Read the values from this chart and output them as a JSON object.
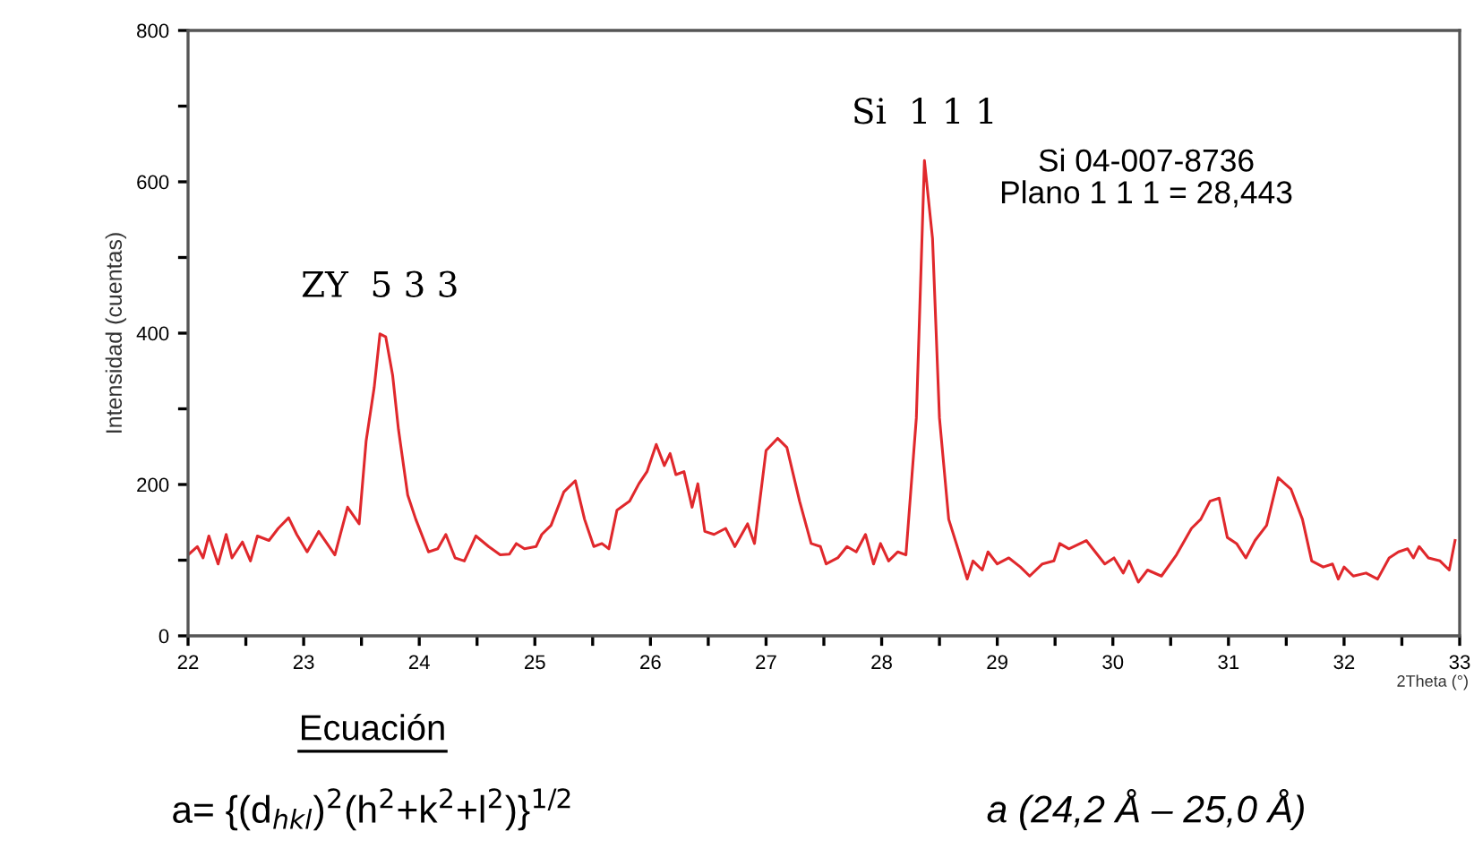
{
  "chart_data": {
    "type": "line",
    "xlabel": "2Theta (°)",
    "ylabel": "Intensidad (cuentas)",
    "xlim": [
      22,
      33
    ],
    "ylim": [
      0,
      800
    ],
    "xticks": [
      22,
      {
        "value": 22.5,
        "label": null
      },
      23,
      {
        "value": 23.5,
        "label": null
      },
      24,
      {
        "value": 24.5,
        "label": null
      },
      25,
      {
        "value": 25.5,
        "label": null
      },
      26,
      {
        "value": 26.5,
        "label": null
      },
      27,
      {
        "value": 27.5,
        "label": null
      },
      28,
      {
        "value": 28.5,
        "label": null
      },
      29,
      {
        "value": 29.5,
        "label": null
      },
      30,
      {
        "value": 30.5,
        "label": null
      },
      31,
      {
        "value": 31.5,
        "label": null
      },
      32,
      {
        "value": 32.5,
        "label": null
      },
      33
    ],
    "yticks": [
      0,
      {
        "value": 100,
        "label": null
      },
      200,
      {
        "value": 300,
        "label": null
      },
      400,
      {
        "value": 500,
        "label": null
      },
      600,
      {
        "value": 700,
        "label": null
      },
      800
    ],
    "grid": false,
    "legend": false,
    "marker": "none",
    "line_style": "solid",
    "annotations": [
      {
        "text": "ZY  5 3 3",
        "x": 23.66,
        "y": 399
      },
      {
        "text": "Si  1 1 1",
        "x": 28.37,
        "y": 628
      },
      "Si 04-007-8736\nPlano 1 1 1 = 28,443",
      "Ecuación",
      "a= {(d$_{hkl}$)$^{2}$(h$^{2}$+k$^{2}$+l$^{2}$)}$^{1/2}$",
      "a (24,2 Å – 25,0 Å)"
    ],
    "series": [
      {
        "color": "#e0282c",
        "x": [
          22.0,
          22.08,
          22.13,
          22.18,
          22.26,
          22.33,
          22.38,
          22.47,
          22.54,
          22.6,
          22.7,
          22.78,
          22.87,
          22.94,
          23.03,
          23.13,
          23.27,
          23.38,
          23.48,
          23.54,
          23.61,
          23.66,
          23.71,
          23.77,
          23.82,
          23.9,
          23.97,
          24.08,
          24.16,
          24.23,
          24.31,
          24.39,
          24.49,
          24.6,
          24.7,
          24.78,
          24.84,
          24.91,
          25.01,
          25.06,
          25.14,
          25.25,
          25.35,
          25.43,
          25.51,
          25.58,
          25.64,
          25.71,
          25.82,
          25.9,
          25.97,
          26.05,
          26.12,
          26.17,
          26.22,
          26.29,
          26.36,
          26.41,
          26.47,
          26.55,
          26.65,
          26.73,
          26.84,
          26.9,
          27.0,
          27.1,
          27.18,
          27.29,
          27.39,
          27.47,
          27.52,
          27.62,
          27.7,
          27.78,
          27.86,
          27.93,
          27.99,
          28.06,
          28.14,
          28.21,
          28.3,
          28.37,
          28.44,
          28.5,
          28.58,
          28.66,
          28.74,
          28.79,
          28.87,
          28.92,
          29.0,
          29.1,
          29.2,
          29.28,
          29.39,
          29.49,
          29.54,
          29.62,
          29.77,
          29.93,
          30.01,
          30.09,
          30.14,
          30.22,
          30.3,
          30.42,
          30.55,
          30.68,
          30.76,
          30.84,
          30.92,
          30.99,
          31.07,
          31.15,
          31.23,
          31.33,
          31.43,
          31.54,
          31.64,
          31.72,
          31.82,
          31.9,
          31.95,
          32.0,
          32.08,
          32.19,
          32.29,
          32.39,
          32.47,
          32.55,
          32.6,
          32.65,
          32.73,
          32.83,
          32.91,
          32.96
        ],
        "values": [
          107,
          118,
          103,
          132,
          95,
          134,
          103,
          124,
          99,
          132,
          126,
          142,
          156,
          134,
          111,
          138,
          107,
          170,
          148,
          257,
          328,
          399,
          395,
          344,
          273,
          186,
          154,
          111,
          115,
          134,
          103,
          99,
          132,
          118,
          107,
          108,
          122,
          115,
          118,
          134,
          146,
          190,
          205,
          154,
          118,
          122,
          115,
          166,
          178,
          201,
          217,
          253,
          225,
          241,
          213,
          217,
          170,
          201,
          138,
          134,
          142,
          118,
          148,
          122,
          245,
          261,
          249,
          178,
          122,
          118,
          95,
          103,
          118,
          111,
          134,
          95,
          122,
          99,
          111,
          107,
          288,
          628,
          525,
          288,
          154,
          115,
          75,
          99,
          87,
          111,
          95,
          103,
          91,
          79,
          95,
          99,
          122,
          115,
          126,
          95,
          103,
          83,
          99,
          71,
          87,
          79,
          107,
          142,
          154,
          178,
          182,
          130,
          122,
          103,
          126,
          146,
          209,
          194,
          154,
          99,
          91,
          95,
          75,
          91,
          79,
          83,
          75,
          103,
          111,
          115,
          103,
          118,
          103,
          99,
          87,
          126
        ]
      }
    ]
  }
}
